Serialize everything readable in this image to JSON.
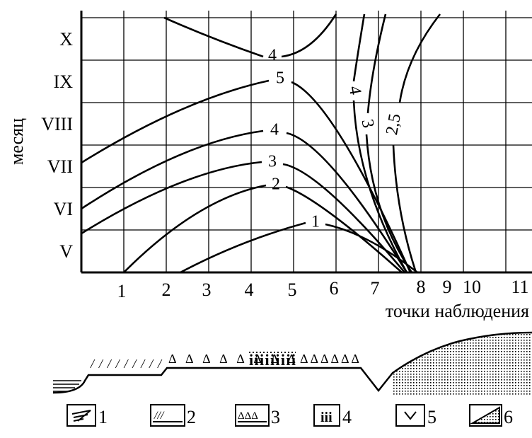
{
  "axes": {
    "y_label": "месяц",
    "x_label": "точки наблюдения",
    "months": [
      "X",
      "IX",
      "VIII",
      "VII",
      "VI",
      "V"
    ],
    "points": [
      "1",
      "2",
      "3",
      "4",
      "5",
      "6",
      "7",
      "8",
      "9",
      "10",
      "11"
    ]
  },
  "contours": [
    "4",
    "5",
    "4",
    "3",
    "2",
    "1",
    "4",
    "3",
    "2,5"
  ],
  "legend": [
    "1",
    "2",
    "3",
    "4",
    "5",
    "6"
  ]
}
